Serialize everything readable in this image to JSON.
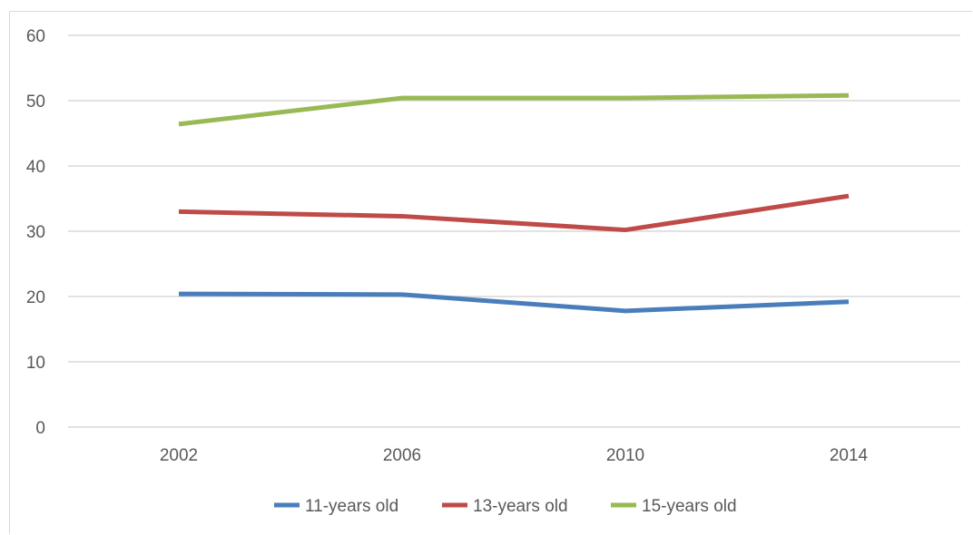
{
  "chart_data": {
    "type": "line",
    "title": "",
    "xlabel": "",
    "ylabel": "",
    "categories": [
      "2002",
      "2006",
      "2010",
      "2014"
    ],
    "ylim": [
      0,
      60
    ],
    "yticks": [
      "0",
      "10",
      "20",
      "30",
      "40",
      "50",
      "60"
    ],
    "grid": true,
    "legend_position": "bottom",
    "series": [
      {
        "name": "11-years old",
        "color": "#4a7ebb",
        "values": [
          20.4,
          20.3,
          17.8,
          19.2
        ]
      },
      {
        "name": "13-years old",
        "color": "#be4b48",
        "values": [
          33.0,
          32.3,
          30.2,
          35.4
        ]
      },
      {
        "name": "15-years old",
        "color": "#98b954",
        "values": [
          46.4,
          50.4,
          50.4,
          50.8
        ]
      }
    ]
  }
}
